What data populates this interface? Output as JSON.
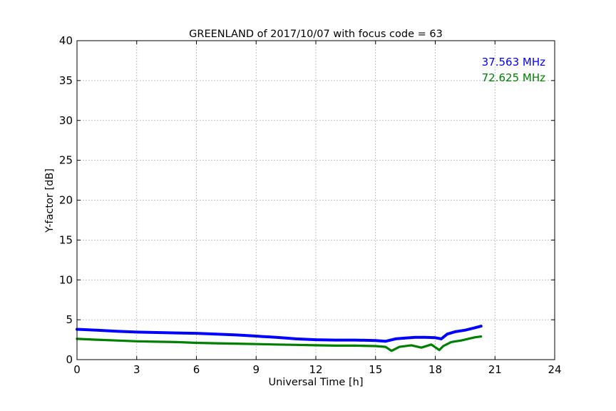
{
  "chart_data": {
    "type": "line",
    "title": "GREENLAND of 2017/10/07 with focus code = 63",
    "xlabel": "Universal Time [h]",
    "ylabel": "Y-factor [dB]",
    "xlim": [
      0,
      24
    ],
    "ylim": [
      0,
      40
    ],
    "xticks": [
      0,
      3,
      6,
      9,
      12,
      15,
      18,
      21,
      24
    ],
    "yticks": [
      0,
      5,
      10,
      15,
      20,
      25,
      30,
      35,
      40
    ],
    "grid": true,
    "legend_placement": "top-right",
    "series": [
      {
        "name": "37.563 MHz",
        "color": "#0000ff",
        "x": [
          0.0,
          1.0,
          2.0,
          3.0,
          4.0,
          5.0,
          6.0,
          7.0,
          8.0,
          9.0,
          9.3,
          10.0,
          10.5,
          11.0,
          12.0,
          13.0,
          14.0,
          15.0,
          15.5,
          16.0,
          16.5,
          17.0,
          17.5,
          18.0,
          18.3,
          18.6,
          19.0,
          19.5,
          20.0,
          20.3
        ],
        "y": [
          3.8,
          3.7,
          3.55,
          3.45,
          3.4,
          3.35,
          3.3,
          3.2,
          3.1,
          2.95,
          2.9,
          2.8,
          2.7,
          2.6,
          2.5,
          2.45,
          2.45,
          2.4,
          2.3,
          2.6,
          2.7,
          2.8,
          2.8,
          2.75,
          2.6,
          3.2,
          3.5,
          3.7,
          4.0,
          4.2
        ]
      },
      {
        "name": "72.625 MHz",
        "color": "#008000",
        "x": [
          0.0,
          1.0,
          2.0,
          3.0,
          4.0,
          5.0,
          6.0,
          7.0,
          8.0,
          9.0,
          10.0,
          11.0,
          12.0,
          13.0,
          14.0,
          15.0,
          15.5,
          15.8,
          16.2,
          16.8,
          17.3,
          17.8,
          18.2,
          18.4,
          18.8,
          19.3,
          20.0,
          20.3
        ],
        "y": [
          2.6,
          2.5,
          2.4,
          2.3,
          2.25,
          2.2,
          2.1,
          2.05,
          2.0,
          1.95,
          1.9,
          1.85,
          1.8,
          1.75,
          1.75,
          1.7,
          1.6,
          1.1,
          1.6,
          1.8,
          1.5,
          1.9,
          1.2,
          1.7,
          2.2,
          2.4,
          2.8,
          2.9
        ]
      }
    ]
  }
}
